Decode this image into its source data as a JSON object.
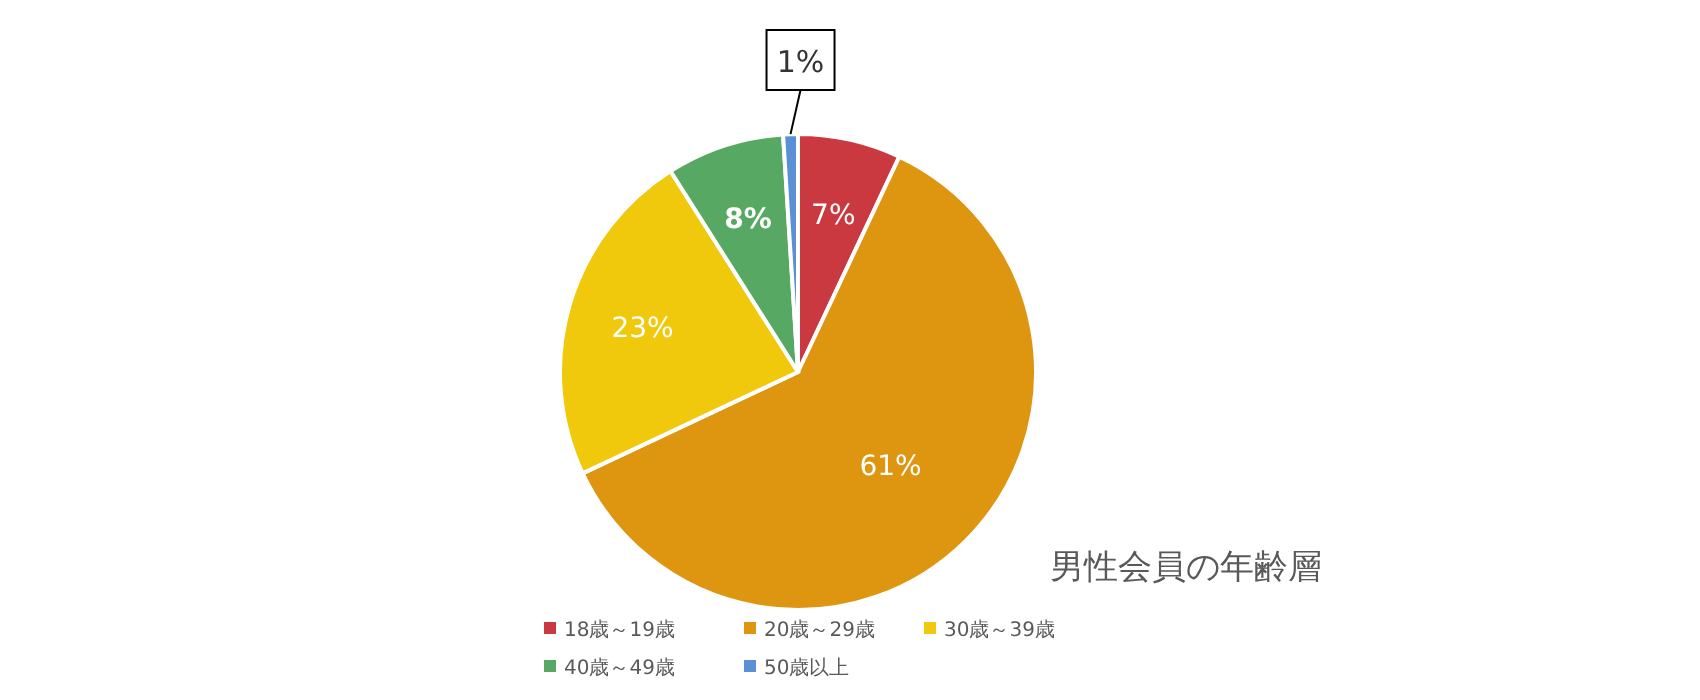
{
  "chart_data": {
    "type": "pie",
    "title": "男性会員の年齢層",
    "categories": [
      "18歳～19歳",
      "20歳～29歳",
      "30歳～39歳",
      "40歳～49歳",
      "50歳以上"
    ],
    "values": [
      7,
      61,
      23,
      8,
      1
    ],
    "colors": [
      "#c9393f",
      "#de9510",
      "#f0c80c",
      "#57a862",
      "#5b8fd6"
    ],
    "value_labels": [
      "7%",
      "61%",
      "23%",
      "8%",
      "1%"
    ],
    "legend": "bottom"
  }
}
